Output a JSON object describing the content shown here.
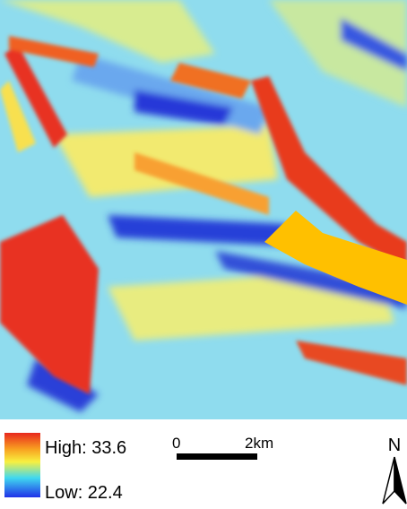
{
  "legend": {
    "high_label": "High: 33.6",
    "low_label": "Low: 22.4"
  },
  "scale_bar": {
    "start_label": "0",
    "end_label": "2km"
  },
  "north_arrow": {
    "label": "N"
  }
}
